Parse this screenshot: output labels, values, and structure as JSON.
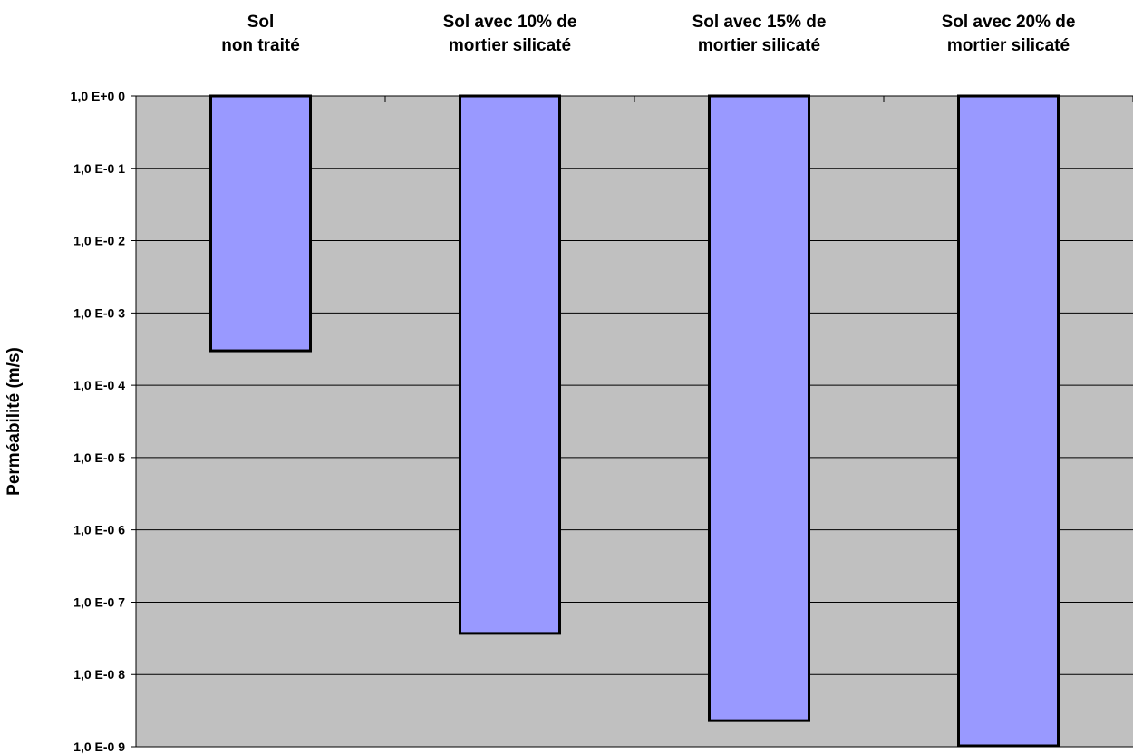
{
  "chart_data": {
    "type": "bar",
    "orientation": "vertical-from-top",
    "y_scale": "log",
    "categories": [
      [
        "Sol",
        "non traité"
      ],
      [
        "Sol avec 10% de",
        "mortier silicaté"
      ],
      [
        "Sol avec 15% de",
        "mortier silicaté"
      ],
      [
        "Sol avec 20% de",
        "mortier silicaté"
      ]
    ],
    "values": [
      0.0003,
      3.7e-08,
      2.3e-09,
      1e-09
    ],
    "ylim": [
      1e-09,
      1
    ],
    "ylabel": "Perméabilité  (m/s)",
    "xlabel": "",
    "title": "",
    "y_tick_values": [
      1,
      0.1,
      0.01,
      0.001,
      0.0001,
      1e-05,
      1e-06,
      1e-07,
      1e-08,
      1e-09
    ],
    "y_tick_labels": [
      "1,0 E+0 0",
      "1,0 E-0 1",
      "1,0 E-0 2",
      "1,0 E-0 3",
      "1,0 E-0 4",
      "1,0 E-0 5",
      "1,0 E-0 6",
      "1,0 E-0 7",
      "1,0 E-0 8",
      "1,0 E-0 9"
    ],
    "grid": true,
    "legend": "none",
    "colors": {
      "bar_fill": "#9999ff",
      "bar_stroke": "#000000",
      "plot_background": "#c0c0c0",
      "gridline": "#000000"
    }
  }
}
